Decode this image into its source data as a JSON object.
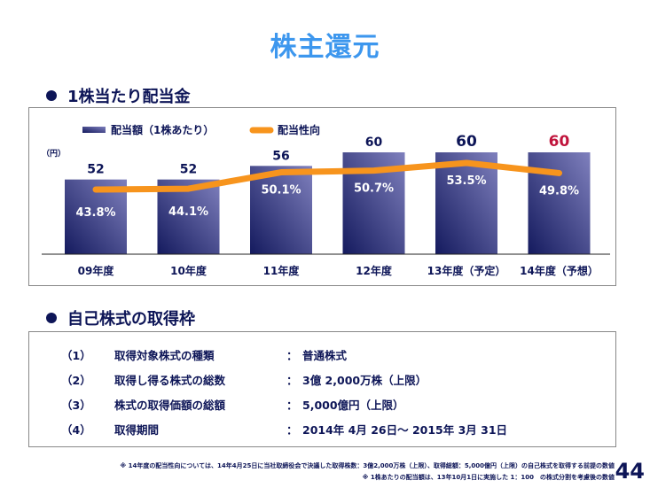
{
  "page_title": "株主還元",
  "section1": {
    "heading": "1株当たり配当金"
  },
  "section2": {
    "heading": "自己株式の取得枠",
    "rows": [
      {
        "num": "（1）",
        "label": "取得対象株式の種類",
        "colon": "：",
        "value": "普通株式"
      },
      {
        "num": "（2）",
        "label": "取得し得る株式の総数",
        "colon": "：",
        "value": "3億 2,000万株（上限）"
      },
      {
        "num": "（3）",
        "label": "株式の取得価額の総額",
        "colon": "：",
        "value": "5,000億円（上限）"
      },
      {
        "num": "（4）",
        "label": "取得期間",
        "colon": "：",
        "value": "2014年 4月 26日～ 2015年 3月 31日"
      }
    ]
  },
  "footnotes": [
    "※ 14年度の配当性向については、14年4月25日に当社取締役会で決議した取得株数：3億2,000万株（上限）、取得総額：5,000億円（上限）の自己株式を取得する前提の数値",
    "※ 1株あたりの配当額は、13年10月1日に実施した 1：100　の株式分割を考慮後の数値"
  ],
  "page_number": "44",
  "colors": {
    "bar_dark": "#141a5e",
    "bar_light": "#7878b8",
    "line": "#f7941d",
    "highlight": "#c0143c",
    "text": "#0d1557"
  },
  "chart_data": {
    "type": "bar",
    "title": "",
    "ylabel": "（円）",
    "ylim": [
      0,
      60
    ],
    "legend": {
      "bar": "配当額（1株あたり）",
      "line": "配当性向",
      "placement": "top-left"
    },
    "categories": [
      "09年度",
      "10年度",
      "11年度",
      "12年度",
      "13年度（予定）",
      "14年度（予想）"
    ],
    "series": [
      {
        "name": "配当額（1株あたり）",
        "type": "bar",
        "values": [
          52,
          52,
          56,
          60,
          60,
          60
        ],
        "labels": [
          "52",
          "52",
          "56",
          "60",
          "60",
          "60"
        ]
      },
      {
        "name": "配当性向",
        "type": "line",
        "values": [
          43.8,
          44.1,
          50.1,
          50.7,
          53.5,
          49.8
        ],
        "labels": [
          "43.8%",
          "44.1%",
          "50.1%",
          "50.7%",
          "53.5%",
          "49.8%"
        ]
      }
    ],
    "highlight_label_index": 5
  }
}
